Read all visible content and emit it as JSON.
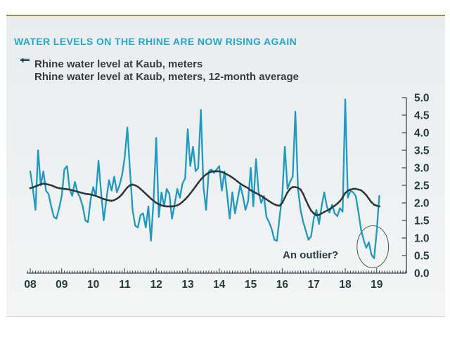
{
  "header": {
    "title": "WATER LEVELS ON THE RHINE ARE NOW RISING AGAIN"
  },
  "legend": [
    {
      "label": "Rhine water level at Kaub, meters",
      "glyph": "line",
      "color": "#2099c2"
    },
    {
      "label": "Rhine water level at Kaub, meters, 12-month average",
      "glyph": "line-tick",
      "color": "#2d3435"
    }
  ],
  "annotation": {
    "text": "An outlier?"
  },
  "colors": {
    "accent_gold": "#a29037",
    "title_teal": "#25a7c9",
    "series_teal": "#2099c2",
    "series_dark": "#2d3435",
    "axis": "#3a4446",
    "tick_label": "#243a39",
    "ellipse": "#566060",
    "panel_bg": "#edf0f1"
  },
  "chart_data": {
    "type": "line",
    "x_start": "2008-01",
    "x_interval": "monthly",
    "x_tick_labels": [
      "08",
      "09",
      "10",
      "11",
      "12",
      "13",
      "14",
      "15",
      "16",
      "17",
      "18",
      "19"
    ],
    "ylim": [
      0,
      5
    ],
    "ytick_step": 0.5,
    "ytick_labels": [
      "0.0",
      "0.5",
      "1.0",
      "1.5",
      "2.0",
      "2.5",
      "3.0",
      "3.5",
      "4.0",
      "4.5",
      "5.0"
    ],
    "y_axis_side": "right",
    "grid": false,
    "legend_position": "top-left",
    "series": [
      {
        "name": "Rhine water level at Kaub, meters",
        "color": "#2099c2",
        "values": [
          2.9,
          2.4,
          1.8,
          3.5,
          2.5,
          2.9,
          2.35,
          2.25,
          1.9,
          1.6,
          1.55,
          1.85,
          2.2,
          2.95,
          3.05,
          2.4,
          2.2,
          2.6,
          2.3,
          2.15,
          1.9,
          1.5,
          1.45,
          2.1,
          2.45,
          2.2,
          3.2,
          2.3,
          1.5,
          2.1,
          2.65,
          2.35,
          2.75,
          2.3,
          2.5,
          2.8,
          3.3,
          4.15,
          2.9,
          1.8,
          1.35,
          1.3,
          1.65,
          1.7,
          1.3,
          1.9,
          0.92,
          2.1,
          3.85,
          1.6,
          2.3,
          1.9,
          2.4,
          2.25,
          1.55,
          1.95,
          2.4,
          2.15,
          2.55,
          2.7,
          4.1,
          3.05,
          3.6,
          2.9,
          3.0,
          4.65,
          2.45,
          1.8,
          2.9,
          2.95,
          2.85,
          2.95,
          3.05,
          2.35,
          2.9,
          2.25,
          1.55,
          2.3,
          1.7,
          2.1,
          2.5,
          2.2,
          1.8,
          2.05,
          3.0,
          1.9,
          3.25,
          2.3,
          2.0,
          2.2,
          1.6,
          1.45,
          1.25,
          0.95,
          0.92,
          1.6,
          2.2,
          3.6,
          2.4,
          2.6,
          2.75,
          4.6,
          2.4,
          1.8,
          1.45,
          1.2,
          0.95,
          1.05,
          1.55,
          1.8,
          1.4,
          1.9,
          2.3,
          1.9,
          1.72,
          1.95,
          1.7,
          1.62,
          1.85,
          1.75,
          4.95,
          2.15,
          2.35,
          2.3,
          2.2,
          1.75,
          1.25,
          0.95,
          0.72,
          0.88,
          0.52,
          0.42,
          1.2,
          2.2
        ]
      },
      {
        "name": "Rhine water level at Kaub, meters, 12-month average",
        "color": "#2d3435",
        "values": [
          2.42,
          2.44,
          2.47,
          2.5,
          2.53,
          2.55,
          2.54,
          2.52,
          2.5,
          2.47,
          2.44,
          2.42,
          2.41,
          2.4,
          2.39,
          2.38,
          2.36,
          2.34,
          2.32,
          2.3,
          2.28,
          2.26,
          2.25,
          2.24,
          2.22,
          2.2,
          2.17,
          2.14,
          2.11,
          2.09,
          2.07,
          2.06,
          2.08,
          2.12,
          2.17,
          2.25,
          2.35,
          2.44,
          2.5,
          2.52,
          2.5,
          2.46,
          2.4,
          2.33,
          2.26,
          2.19,
          2.12,
          2.06,
          2.0,
          1.96,
          1.93,
          1.91,
          1.9,
          1.9,
          1.9,
          1.91,
          1.93,
          1.97,
          2.03,
          2.1,
          2.18,
          2.27,
          2.37,
          2.47,
          2.57,
          2.67,
          2.75,
          2.81,
          2.86,
          2.89,
          2.9,
          2.9,
          2.9,
          2.88,
          2.85,
          2.81,
          2.77,
          2.72,
          2.67,
          2.61,
          2.55,
          2.5,
          2.46,
          2.42,
          2.36,
          2.32,
          2.28,
          2.24,
          2.2,
          2.15,
          2.1,
          2.05,
          2.0,
          1.96,
          1.93,
          1.92,
          2.0,
          2.15,
          2.3,
          2.4,
          2.45,
          2.45,
          2.43,
          2.38,
          2.25,
          2.08,
          1.92,
          1.78,
          1.7,
          1.65,
          1.66,
          1.7,
          1.74,
          1.78,
          1.82,
          1.87,
          1.92,
          1.98,
          2.05,
          2.16,
          2.28,
          2.35,
          2.38,
          2.4,
          2.4,
          2.38,
          2.36,
          2.3,
          2.22,
          2.12,
          2.02,
          1.95,
          1.92,
          1.9
        ]
      }
    ],
    "annotations": [
      {
        "text": "An outlier?",
        "ellipse_center_month": 130.5,
        "ellipse_center_value": 0.75,
        "ellipse_rx_months": 6,
        "ellipse_ry_value": 0.6
      }
    ]
  }
}
